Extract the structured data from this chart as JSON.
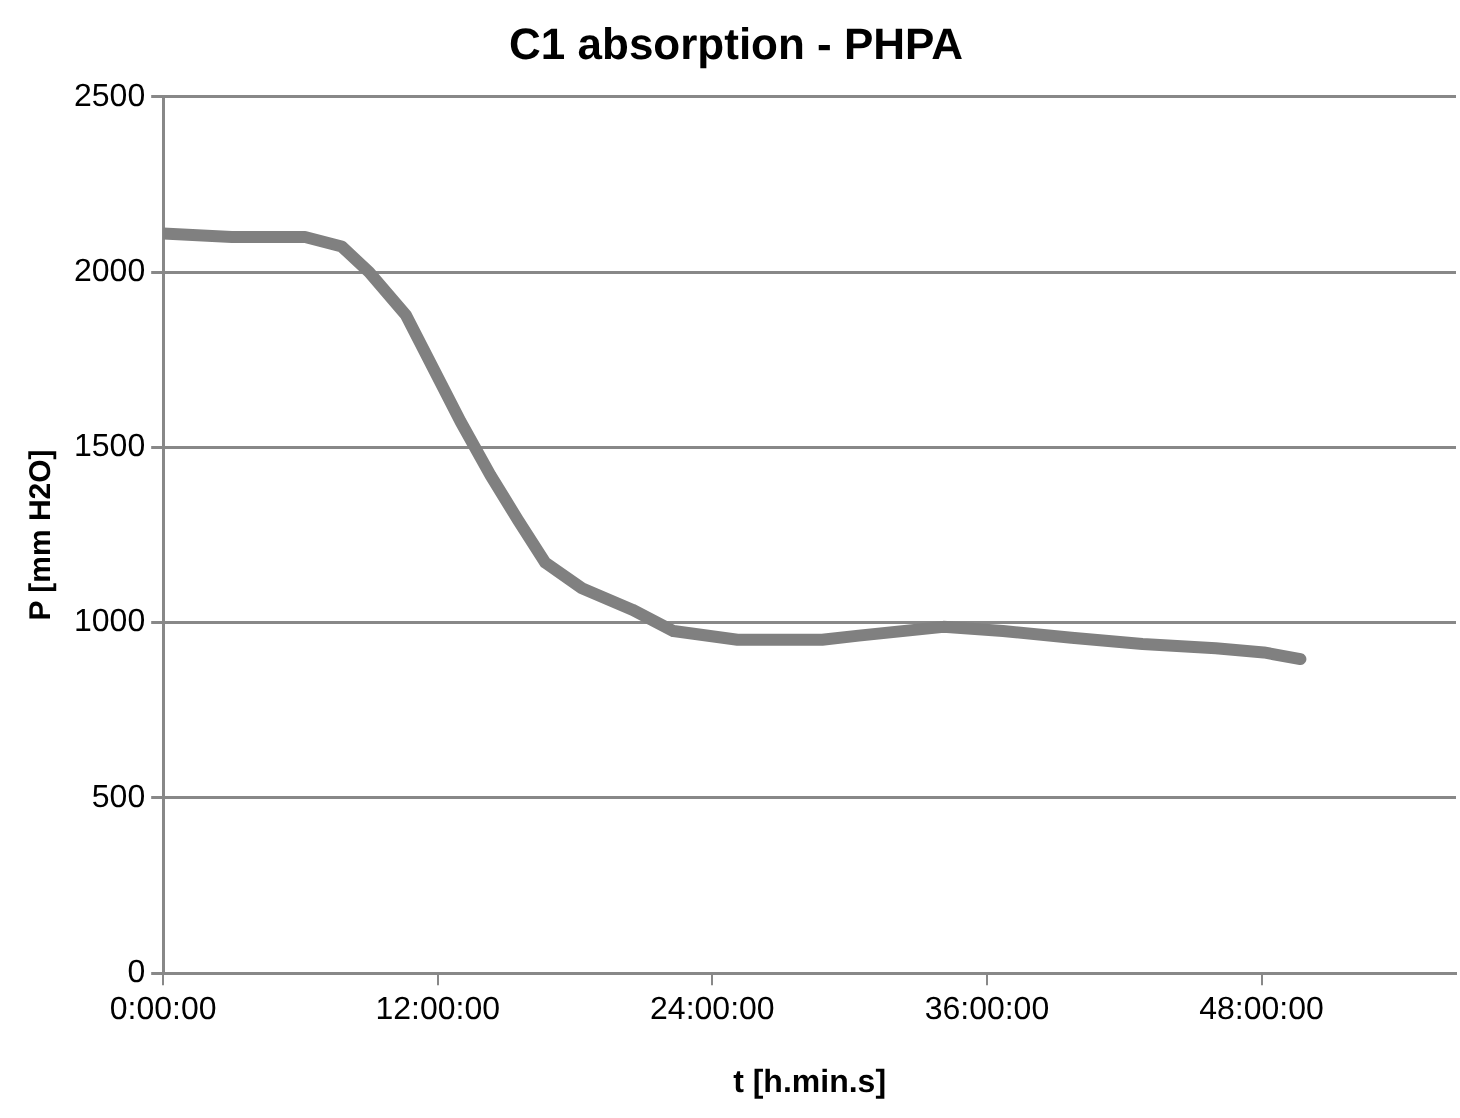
{
  "chart_data": {
    "type": "line",
    "title": "C1 absorption - PHPA",
    "xlabel": "t [h.min.s]",
    "ylabel": "P [mm H2O]",
    "x": [
      0,
      3,
      6.2,
      7.8,
      9.0,
      10.6,
      11.8,
      13.0,
      14.3,
      15.5,
      16.7,
      18.3,
      20.5,
      22.3,
      25.1,
      28.8,
      30.4,
      34.1,
      36.7,
      39.7,
      42.8,
      46.0,
      48.1,
      49.7
    ],
    "series": [
      {
        "color": "#808080",
        "values": [
          2110,
          2100,
          2100,
          2073,
          2000,
          1878,
          1726,
          1573,
          1421,
          1293,
          1171,
          1098,
          1037,
          976,
          951,
          951,
          963,
          988,
          976,
          957,
          939,
          927,
          915,
          896
        ]
      }
    ],
    "xlim": [
      0,
      56.5
    ],
    "xticks": [
      {
        "value": 0,
        "label": "0:00:00"
      },
      {
        "value": 12,
        "label": "12:00:00"
      },
      {
        "value": 24,
        "label": "24:00:00"
      },
      {
        "value": 36,
        "label": "36:00:00"
      },
      {
        "value": 48,
        "label": "48:00:00"
      }
    ],
    "ylim": [
      0,
      2500
    ],
    "yticks": [
      0,
      500,
      1000,
      1500,
      2000,
      2500
    ],
    "grid": "y",
    "legend": false,
    "marker": "none",
    "line_style": "solid"
  }
}
